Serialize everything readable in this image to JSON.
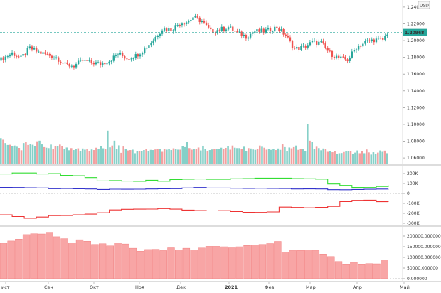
{
  "chart_data": [
    {
      "panel": "price",
      "type": "candlestick",
      "currency_badge": "USD",
      "last_price_label": "1.20968",
      "ylim": [
        1.055,
        1.245
      ],
      "y_ticks": [
        "1.24000",
        "1.22000",
        "1.20000",
        "1.18000",
        "1.16000",
        "1.14000",
        "1.12000",
        "1.10000",
        "1.08000",
        "1.06000"
      ],
      "y_tick_values": [
        1.24,
        1.22,
        1.2,
        1.18,
        1.16,
        1.14,
        1.12,
        1.1,
        1.08,
        1.06
      ],
      "last_price": 1.20968,
      "close_path": [
        [
          0,
          1.176
        ],
        [
          6,
          1.185
        ],
        [
          10,
          1.179
        ],
        [
          14,
          1.191
        ],
        [
          18,
          1.186
        ],
        [
          22,
          1.183
        ],
        [
          26,
          1.18
        ],
        [
          30,
          1.171
        ],
        [
          34,
          1.17
        ],
        [
          38,
          1.176
        ],
        [
          42,
          1.174
        ],
        [
          46,
          1.172
        ],
        [
          50,
          1.176
        ],
        [
          54,
          1.184
        ],
        [
          58,
          1.179
        ],
        [
          62,
          1.182
        ],
        [
          66,
          1.19
        ],
        [
          70,
          1.201
        ],
        [
          74,
          1.214
        ],
        [
          78,
          1.213
        ],
        [
          82,
          1.221
        ],
        [
          86,
          1.223
        ],
        [
          88,
          1.228
        ],
        [
          92,
          1.223
        ],
        [
          96,
          1.211
        ],
        [
          100,
          1.213
        ],
        [
          104,
          1.216
        ],
        [
          108,
          1.209
        ],
        [
          112,
          1.205
        ],
        [
          116,
          1.211
        ],
        [
          120,
          1.211
        ],
        [
          124,
          1.214
        ],
        [
          126,
          1.216
        ],
        [
          130,
          1.206
        ],
        [
          134,
          1.19
        ],
        [
          138,
          1.192
        ],
        [
          142,
          1.198
        ],
        [
          146,
          1.197
        ],
        [
          150,
          1.185
        ],
        [
          154,
          1.179
        ],
        [
          158,
          1.177
        ],
        [
          162,
          1.192
        ],
        [
          166,
          1.198
        ],
        [
          170,
          1.201
        ],
        [
          174,
          1.201
        ],
        [
          176,
          1.209
        ]
      ],
      "volume_ylim": [
        0,
        200000
      ],
      "volume_values": [
        130000,
        122000,
        105000,
        95000,
        96000,
        88000,
        92000,
        86000,
        80000,
        68000,
        105000,
        112000,
        95000,
        101000,
        96000,
        88000,
        114000,
        117000,
        98000,
        84000,
        81000,
        79000,
        97000,
        74000,
        88000,
        89000,
        97000,
        88000,
        75000,
        82000,
        68000,
        79000,
        69000,
        73000,
        78000,
        65000,
        77000,
        71000,
        76000,
        65000,
        72000,
        69000,
        81000,
        74000,
        88000,
        78000,
        76000,
        168000,
        83000,
        92000,
        117000,
        76000,
        93000,
        55000,
        87000,
        74000,
        67000,
        69000,
        71000,
        53000,
        64000,
        62000,
        63000,
        69000,
        75000,
        63000,
        70000,
        69000,
        72000,
        74000,
        73000,
        60000,
        76000,
        71000,
        76000,
        69000,
        78000,
        73000,
        71000,
        71000,
        88000,
        84000,
        110000,
        79000,
        71000,
        75000,
        75000,
        82000,
        67000,
        91000,
        74000,
        65000,
        69000,
        72000,
        73000,
        75000,
        75000,
        81000,
        75000,
        80000,
        89000,
        71000,
        92000,
        81000,
        79000,
        79000,
        74000,
        86000,
        63000,
        79000,
        77000,
        72000,
        70000,
        76000,
        92000,
        86000,
        81000,
        71000,
        73000,
        70000,
        75000,
        69000,
        77000,
        70000,
        98000,
        84000,
        65000,
        82000,
        78000,
        84000,
        92000,
        70000,
        74000,
        76000,
        63000,
        202000,
        117000,
        111000,
        75000,
        86000,
        79000,
        68000,
        77000,
        75000,
        60000,
        62000,
        58000,
        64000,
        51000,
        53000,
        54000,
        59000,
        63000,
        63000,
        62000,
        51000,
        56000,
        67000,
        53000,
        63000,
        53000,
        72000,
        57000,
        46000,
        58000,
        51000,
        56000,
        67000,
        60000,
        66000,
        53000
      ]
    },
    {
      "panel": "cot_positions",
      "type": "line",
      "ylim": [
        -300000,
        250000
      ],
      "y_ticks": [
        "200K",
        "100K",
        "0",
        "-100K",
        "-200K",
        "-300K"
      ],
      "y_tick_values": [
        200000,
        100000,
        0,
        -100000,
        -200000,
        -300000
      ],
      "series": [
        {
          "color": "#33dd33",
          "values": [
            196000,
            206000,
            206000,
            196000,
            199000,
            182000,
            178000,
            159000,
            126000,
            129000,
            124000,
            122000,
            133000,
            123000,
            140000,
            143000,
            146000,
            142000,
            142000,
            148000,
            149000,
            154000,
            154000,
            154000,
            150000,
            148000,
            144000,
            95000,
            81000,
            61000,
            59000,
            70000,
            81000
          ]
        },
        {
          "color": "#3333cc",
          "values": [
            60000,
            59000,
            57000,
            55000,
            48000,
            49000,
            47000,
            45000,
            40000,
            43000,
            42000,
            43000,
            45000,
            47000,
            48000,
            55000,
            59000,
            54000,
            54000,
            52000,
            50000,
            52000,
            51000,
            49000,
            45000,
            46000,
            45000,
            38000,
            37000,
            40000,
            42000,
            44000,
            45000
          ]
        },
        {
          "color": "#ee3333",
          "values": [
            -215000,
            -232000,
            -249000,
            -237000,
            -223000,
            -222000,
            -214000,
            -208000,
            -194000,
            -166000,
            -159000,
            -158000,
            -157000,
            -152000,
            -158000,
            -167000,
            -172000,
            -175000,
            -173000,
            -182000,
            -189000,
            -191000,
            -186000,
            -137000,
            -141000,
            -144000,
            -139000,
            -130000,
            -82000,
            -69000,
            -67000,
            -83000,
            -84000
          ]
        }
      ]
    },
    {
      "panel": "open_interest",
      "type": "bar",
      "ylim": [
        0,
        230000
      ],
      "y_ticks": [
        "200000.000000",
        "150000.000000",
        "100000.000000",
        "50000.000000",
        "0.000000"
      ],
      "y_tick_values": [
        200000,
        150000,
        100000,
        50000,
        0
      ],
      "values": [
        167000,
        177000,
        186000,
        207000,
        211000,
        210000,
        218000,
        197000,
        188000,
        169000,
        183000,
        176000,
        161000,
        164000,
        154000,
        168000,
        163000,
        143000,
        129000,
        137000,
        138000,
        132000,
        145000,
        136000,
        143000,
        134000,
        144000,
        152000,
        152000,
        150000,
        145000,
        150000,
        156000,
        159000,
        161000,
        165000,
        175000,
        126000,
        132000,
        133000,
        134000,
        132000,
        116000,
        104000,
        81000,
        69000,
        77000,
        69000,
        71000,
        70000,
        88000
      ]
    }
  ],
  "x_axis": {
    "labels": [
      "ист",
      "Сен",
      "Окт",
      "Ноя",
      "Дек",
      "2021",
      "Фев",
      "Мар",
      "Апр",
      "Май"
    ]
  }
}
